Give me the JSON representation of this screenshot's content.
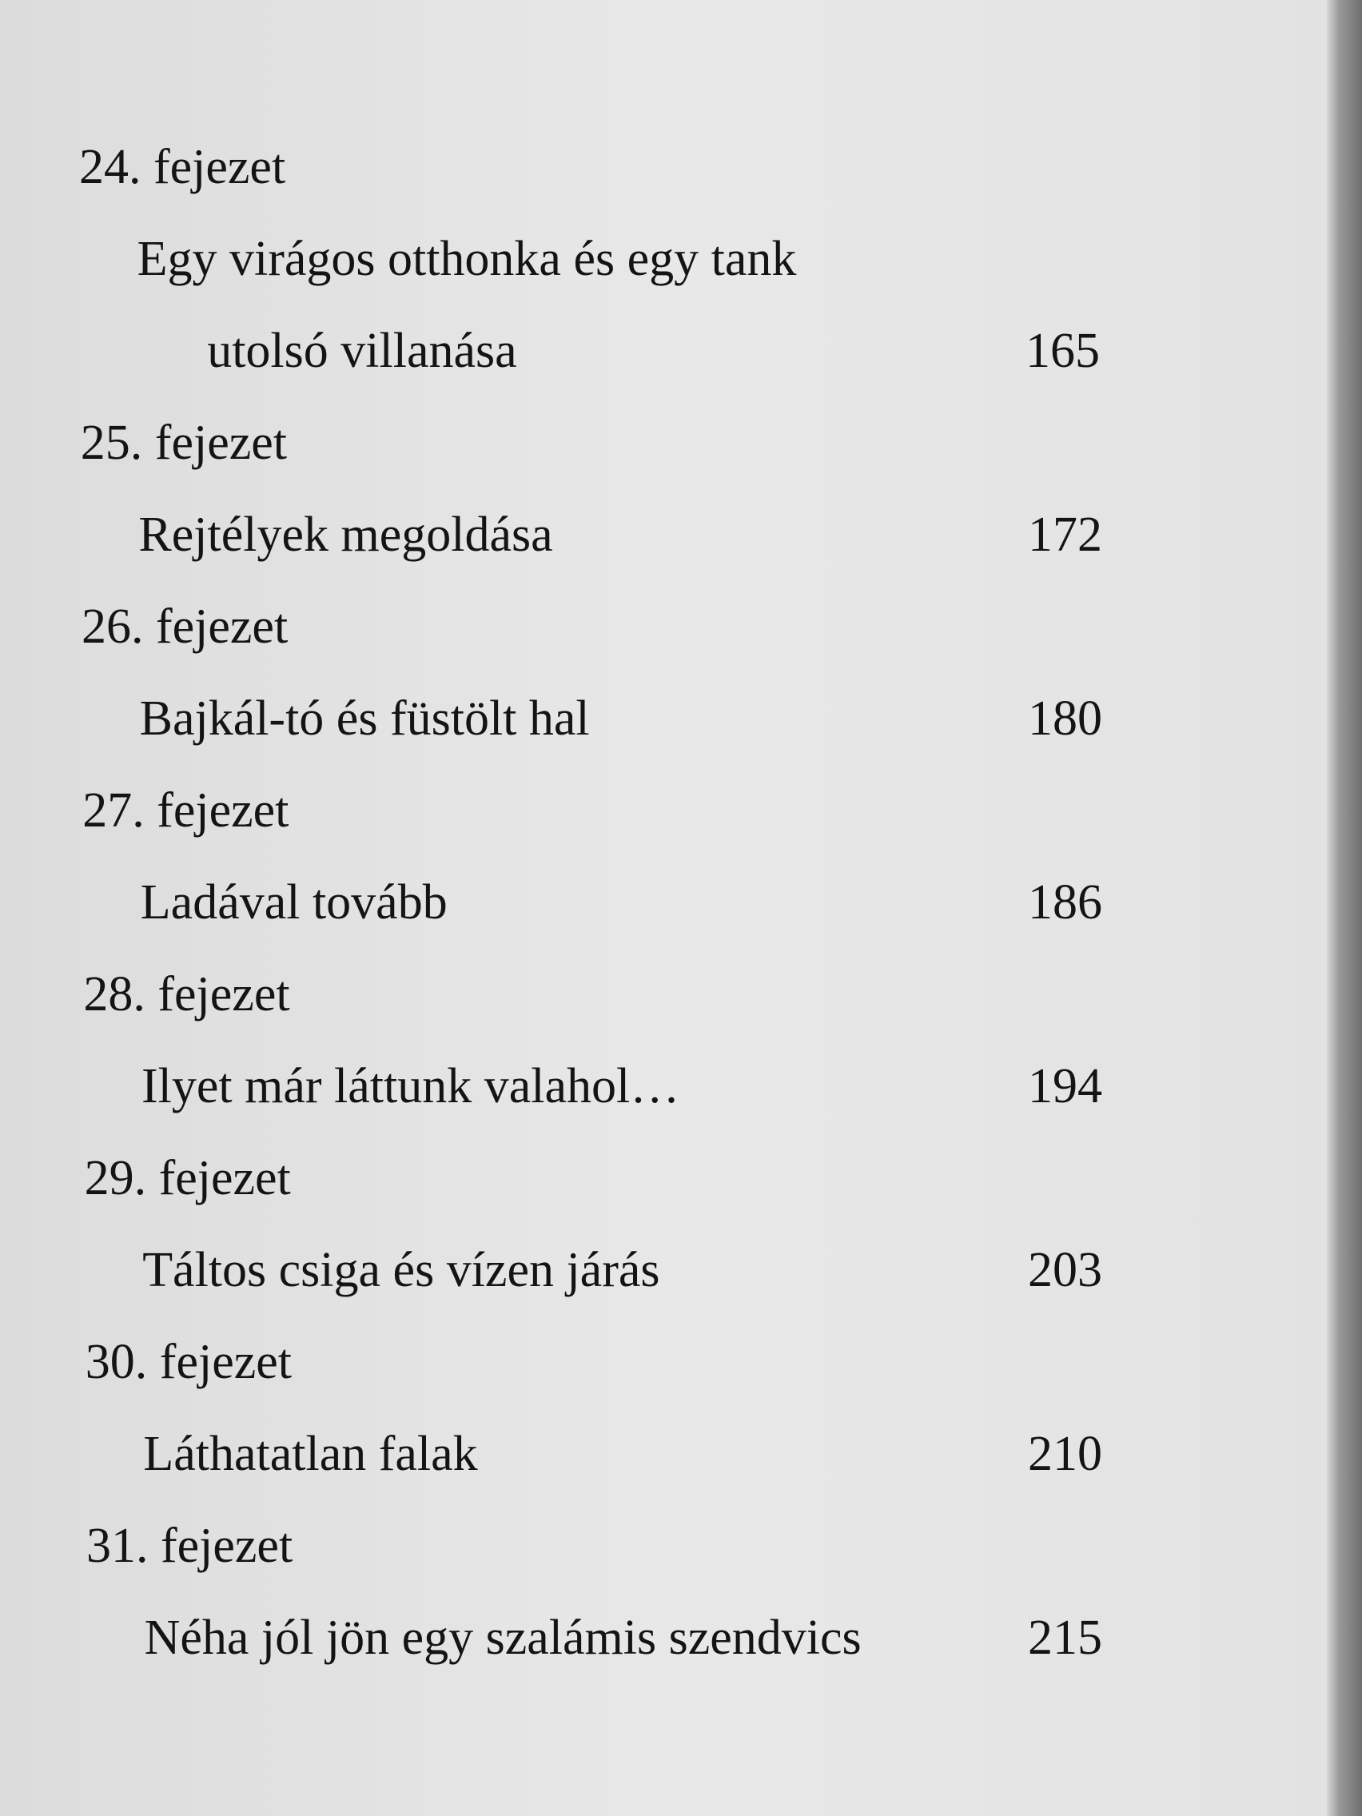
{
  "entries": [
    {
      "chapter": "24. fejezet",
      "title": [
        "Egy virágos otthonka és egy tank",
        "utolsó villanása"
      ],
      "page": 165
    },
    {
      "chapter": "25. fejezet",
      "title": [
        "Rejtélyek megoldása"
      ],
      "page": 172
    },
    {
      "chapter": "26. fejezet",
      "title": [
        "Bajkál-tó és füstölt hal"
      ],
      "page": 180
    },
    {
      "chapter": "27. fejezet",
      "title": [
        "Ladával tovább"
      ],
      "page": 186
    },
    {
      "chapter": "28. fejezet",
      "title": [
        "Ilyet már láttunk valahol…"
      ],
      "page": 194
    },
    {
      "chapter": "29. fejezet",
      "title": [
        "Táltos csiga és vízen járás"
      ],
      "page": 203
    },
    {
      "chapter": "30. fejezet",
      "title": [
        "Láthatatlan falak"
      ],
      "page": 210
    },
    {
      "chapter": "31. fejezet",
      "title": [
        "Néha jól jön egy szalámis szendvics"
      ],
      "page": 215
    }
  ]
}
